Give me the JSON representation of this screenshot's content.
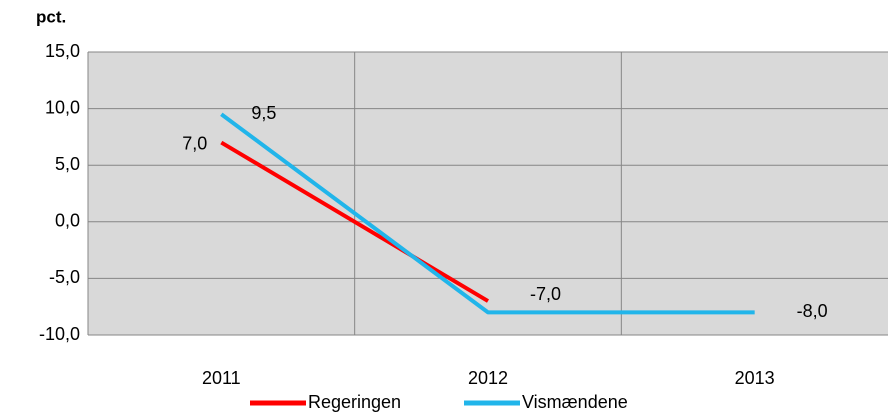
{
  "chart_data": {
    "type": "line",
    "y_label": "pct.",
    "categories": [
      "2011",
      "2012",
      "2013"
    ],
    "series": [
      {
        "name": "Regeringen",
        "color": "#ff0000",
        "values": [
          7.0,
          -7.0,
          null
        ],
        "value_labels": [
          "7,0",
          "-7,0",
          null
        ]
      },
      {
        "name": "Vismændene",
        "color": "#21b5ea",
        "values": [
          9.5,
          -8.0,
          -8.0
        ],
        "value_labels": [
          "9,5",
          null,
          "-8,0"
        ]
      }
    ],
    "ylim": [
      -10,
      15
    ],
    "yticks": [
      {
        "value": -10,
        "label": "-10,0"
      },
      {
        "value": -5,
        "label": "-5,0"
      },
      {
        "value": 0,
        "label": "0,0"
      },
      {
        "value": 5,
        "label": "5,0"
      },
      {
        "value": 10,
        "label": "10,0"
      },
      {
        "value": 15,
        "label": "15,0"
      }
    ],
    "grid": true,
    "legend": "bottom"
  }
}
